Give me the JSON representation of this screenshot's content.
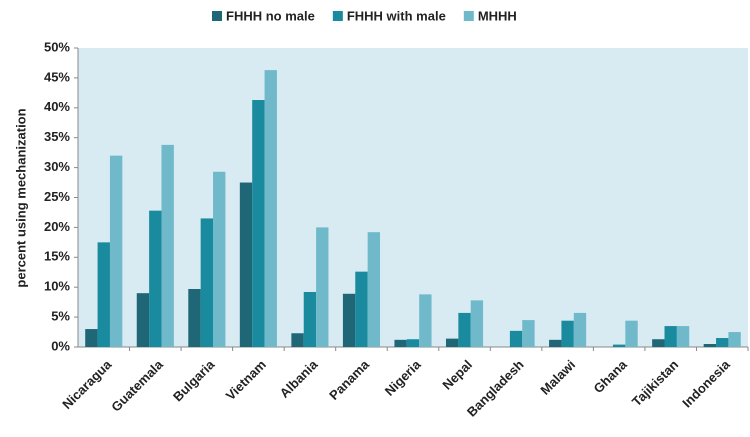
{
  "chart_data": {
    "type": "bar",
    "y_label": "percent using mechanization",
    "categories": [
      "Nicaragua",
      "Guatemala",
      "Bulgaria",
      "Vietnam",
      "Albania",
      "Panama",
      "Nigeria",
      "Nepal",
      "Bangladesh",
      "Malawi",
      "Ghana",
      "Tajikistan",
      "Indonesia"
    ],
    "series": [
      {
        "name": "FHHH no male",
        "color": "#1f6776",
        "values": [
          3,
          9,
          9.7,
          27.5,
          2.3,
          8.9,
          1.2,
          1.4,
          0,
          1.2,
          0,
          1.3,
          0.5
        ]
      },
      {
        "name": "FHHH with male",
        "color": "#1a8a9e",
        "values": [
          17.5,
          22.8,
          21.5,
          41.3,
          9.2,
          12.6,
          1.3,
          5.7,
          2.7,
          4.4,
          0.4,
          3.5,
          1.5
        ]
      },
      {
        "name": "MHHH",
        "color": "#6fb9ca",
        "values": [
          32,
          33.8,
          29.3,
          46.3,
          20,
          19.2,
          8.8,
          7.8,
          4.5,
          5.7,
          4.4,
          3.5,
          2.5
        ]
      }
    ],
    "ylim": [
      0,
      50
    ],
    "yticks": [
      {
        "value": 0,
        "label": "0%"
      },
      {
        "value": 5,
        "label": "5%"
      },
      {
        "value": 10,
        "label": "10%"
      },
      {
        "value": 15,
        "label": "15%"
      },
      {
        "value": 20,
        "label": "20%"
      },
      {
        "value": 25,
        "label": "25%"
      },
      {
        "value": 30,
        "label": "30%"
      },
      {
        "value": 35,
        "label": "35%"
      },
      {
        "value": 40,
        "label": "40%"
      },
      {
        "value": 45,
        "label": "45%"
      },
      {
        "value": 50,
        "label": "50%"
      }
    ],
    "grid": false,
    "plot_background": "#d8ebf3",
    "legend": "top"
  }
}
